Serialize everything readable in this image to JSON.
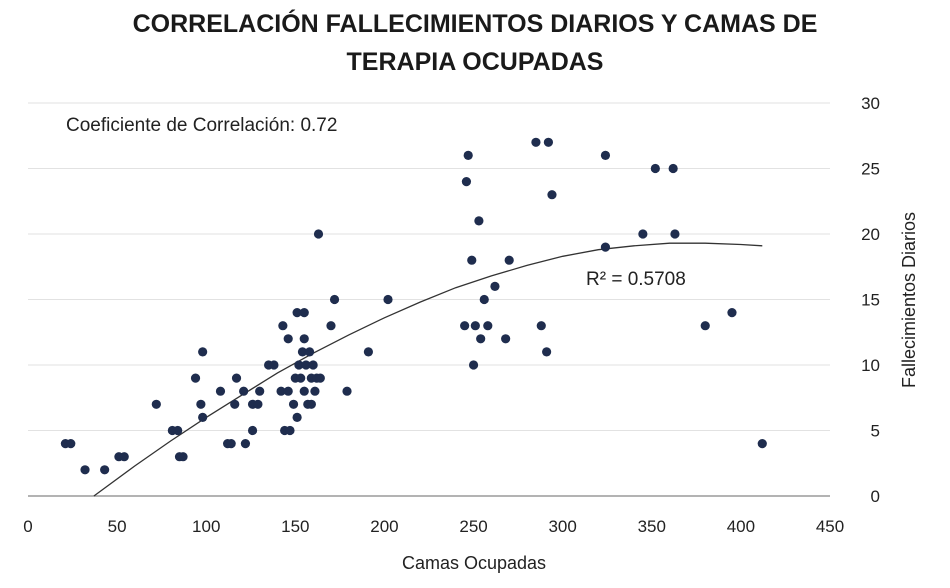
{
  "chart_data": {
    "type": "scatter",
    "title_lines": [
      "CORRELACIÓN FALLECIMIENTOS DIARIOS Y CAMAS DE",
      "TERAPIA OCUPADAS"
    ],
    "xlabel": "Camas Ocupadas",
    "ylabel": "Fallecimientos Diarios",
    "xlim": [
      0,
      450
    ],
    "ylim": [
      0,
      30
    ],
    "xticks": [
      "0",
      "50",
      "100",
      "150",
      "200",
      "250",
      "300",
      "350",
      "400",
      "450"
    ],
    "yticks": [
      "0",
      "5",
      "10",
      "15",
      "20",
      "25",
      "30"
    ],
    "y_axis_side": "right",
    "grid": "horizontal",
    "annotation_correlation": "Coeficiente de Correlación:  0.72",
    "annotation_r2": "R² = 0.5708",
    "marker_color": "#1f2d4e",
    "trendline": {
      "type": "polynomial-2",
      "x": [
        37,
        60,
        80,
        100,
        120,
        140,
        160,
        180,
        200,
        220,
        240,
        260,
        280,
        300,
        320,
        340,
        360,
        380,
        400,
        412
      ],
      "y": [
        0,
        2.3,
        4.2,
        6.0,
        7.7,
        9.4,
        10.9,
        12.3,
        13.6,
        14.8,
        15.9,
        16.8,
        17.6,
        18.3,
        18.8,
        19.1,
        19.3,
        19.3,
        19.2,
        19.1
      ]
    },
    "points": [
      [
        21,
        4
      ],
      [
        24,
        4
      ],
      [
        32,
        2
      ],
      [
        43,
        2
      ],
      [
        51,
        3
      ],
      [
        54,
        3
      ],
      [
        72,
        7
      ],
      [
        81,
        5
      ],
      [
        84,
        5
      ],
      [
        85,
        3
      ],
      [
        87,
        3
      ],
      [
        94,
        9
      ],
      [
        97,
        7
      ],
      [
        98,
        11
      ],
      [
        98,
        6
      ],
      [
        108,
        8
      ],
      [
        112,
        4
      ],
      [
        114,
        4
      ],
      [
        116,
        7
      ],
      [
        117,
        9
      ],
      [
        121,
        8
      ],
      [
        122,
        4
      ],
      [
        126,
        5
      ],
      [
        126,
        7
      ],
      [
        129,
        7
      ],
      [
        130,
        8
      ],
      [
        135,
        10
      ],
      [
        138,
        10
      ],
      [
        142,
        8
      ],
      [
        143,
        13
      ],
      [
        144,
        5
      ],
      [
        146,
        8
      ],
      [
        146,
        12
      ],
      [
        147,
        5
      ],
      [
        149,
        7
      ],
      [
        150,
        9
      ],
      [
        151,
        6
      ],
      [
        151,
        14
      ],
      [
        152,
        10
      ],
      [
        153,
        9
      ],
      [
        154,
        11
      ],
      [
        155,
        8
      ],
      [
        155,
        12
      ],
      [
        155,
        14
      ],
      [
        156,
        10
      ],
      [
        157,
        7
      ],
      [
        158,
        11
      ],
      [
        159,
        7
      ],
      [
        159,
        9
      ],
      [
        160,
        10
      ],
      [
        161,
        8
      ],
      [
        162,
        9
      ],
      [
        163,
        20
      ],
      [
        164,
        9
      ],
      [
        170,
        13
      ],
      [
        172,
        15
      ],
      [
        179,
        8
      ],
      [
        191,
        11
      ],
      [
        202,
        15
      ],
      [
        245,
        13
      ],
      [
        246,
        24
      ],
      [
        247,
        26
      ],
      [
        249,
        18
      ],
      [
        250,
        10
      ],
      [
        251,
        13
      ],
      [
        253,
        21
      ],
      [
        254,
        12
      ],
      [
        256,
        15
      ],
      [
        258,
        13
      ],
      [
        262,
        16
      ],
      [
        268,
        12
      ],
      [
        270,
        18
      ],
      [
        285,
        27
      ],
      [
        288,
        13
      ],
      [
        291,
        11
      ],
      [
        292,
        27
      ],
      [
        294,
        23
      ],
      [
        324,
        19
      ],
      [
        324,
        26
      ],
      [
        345,
        20
      ],
      [
        352,
        25
      ],
      [
        362,
        25
      ],
      [
        363,
        20
      ],
      [
        380,
        13
      ],
      [
        395,
        14
      ],
      [
        412,
        4
      ]
    ]
  }
}
